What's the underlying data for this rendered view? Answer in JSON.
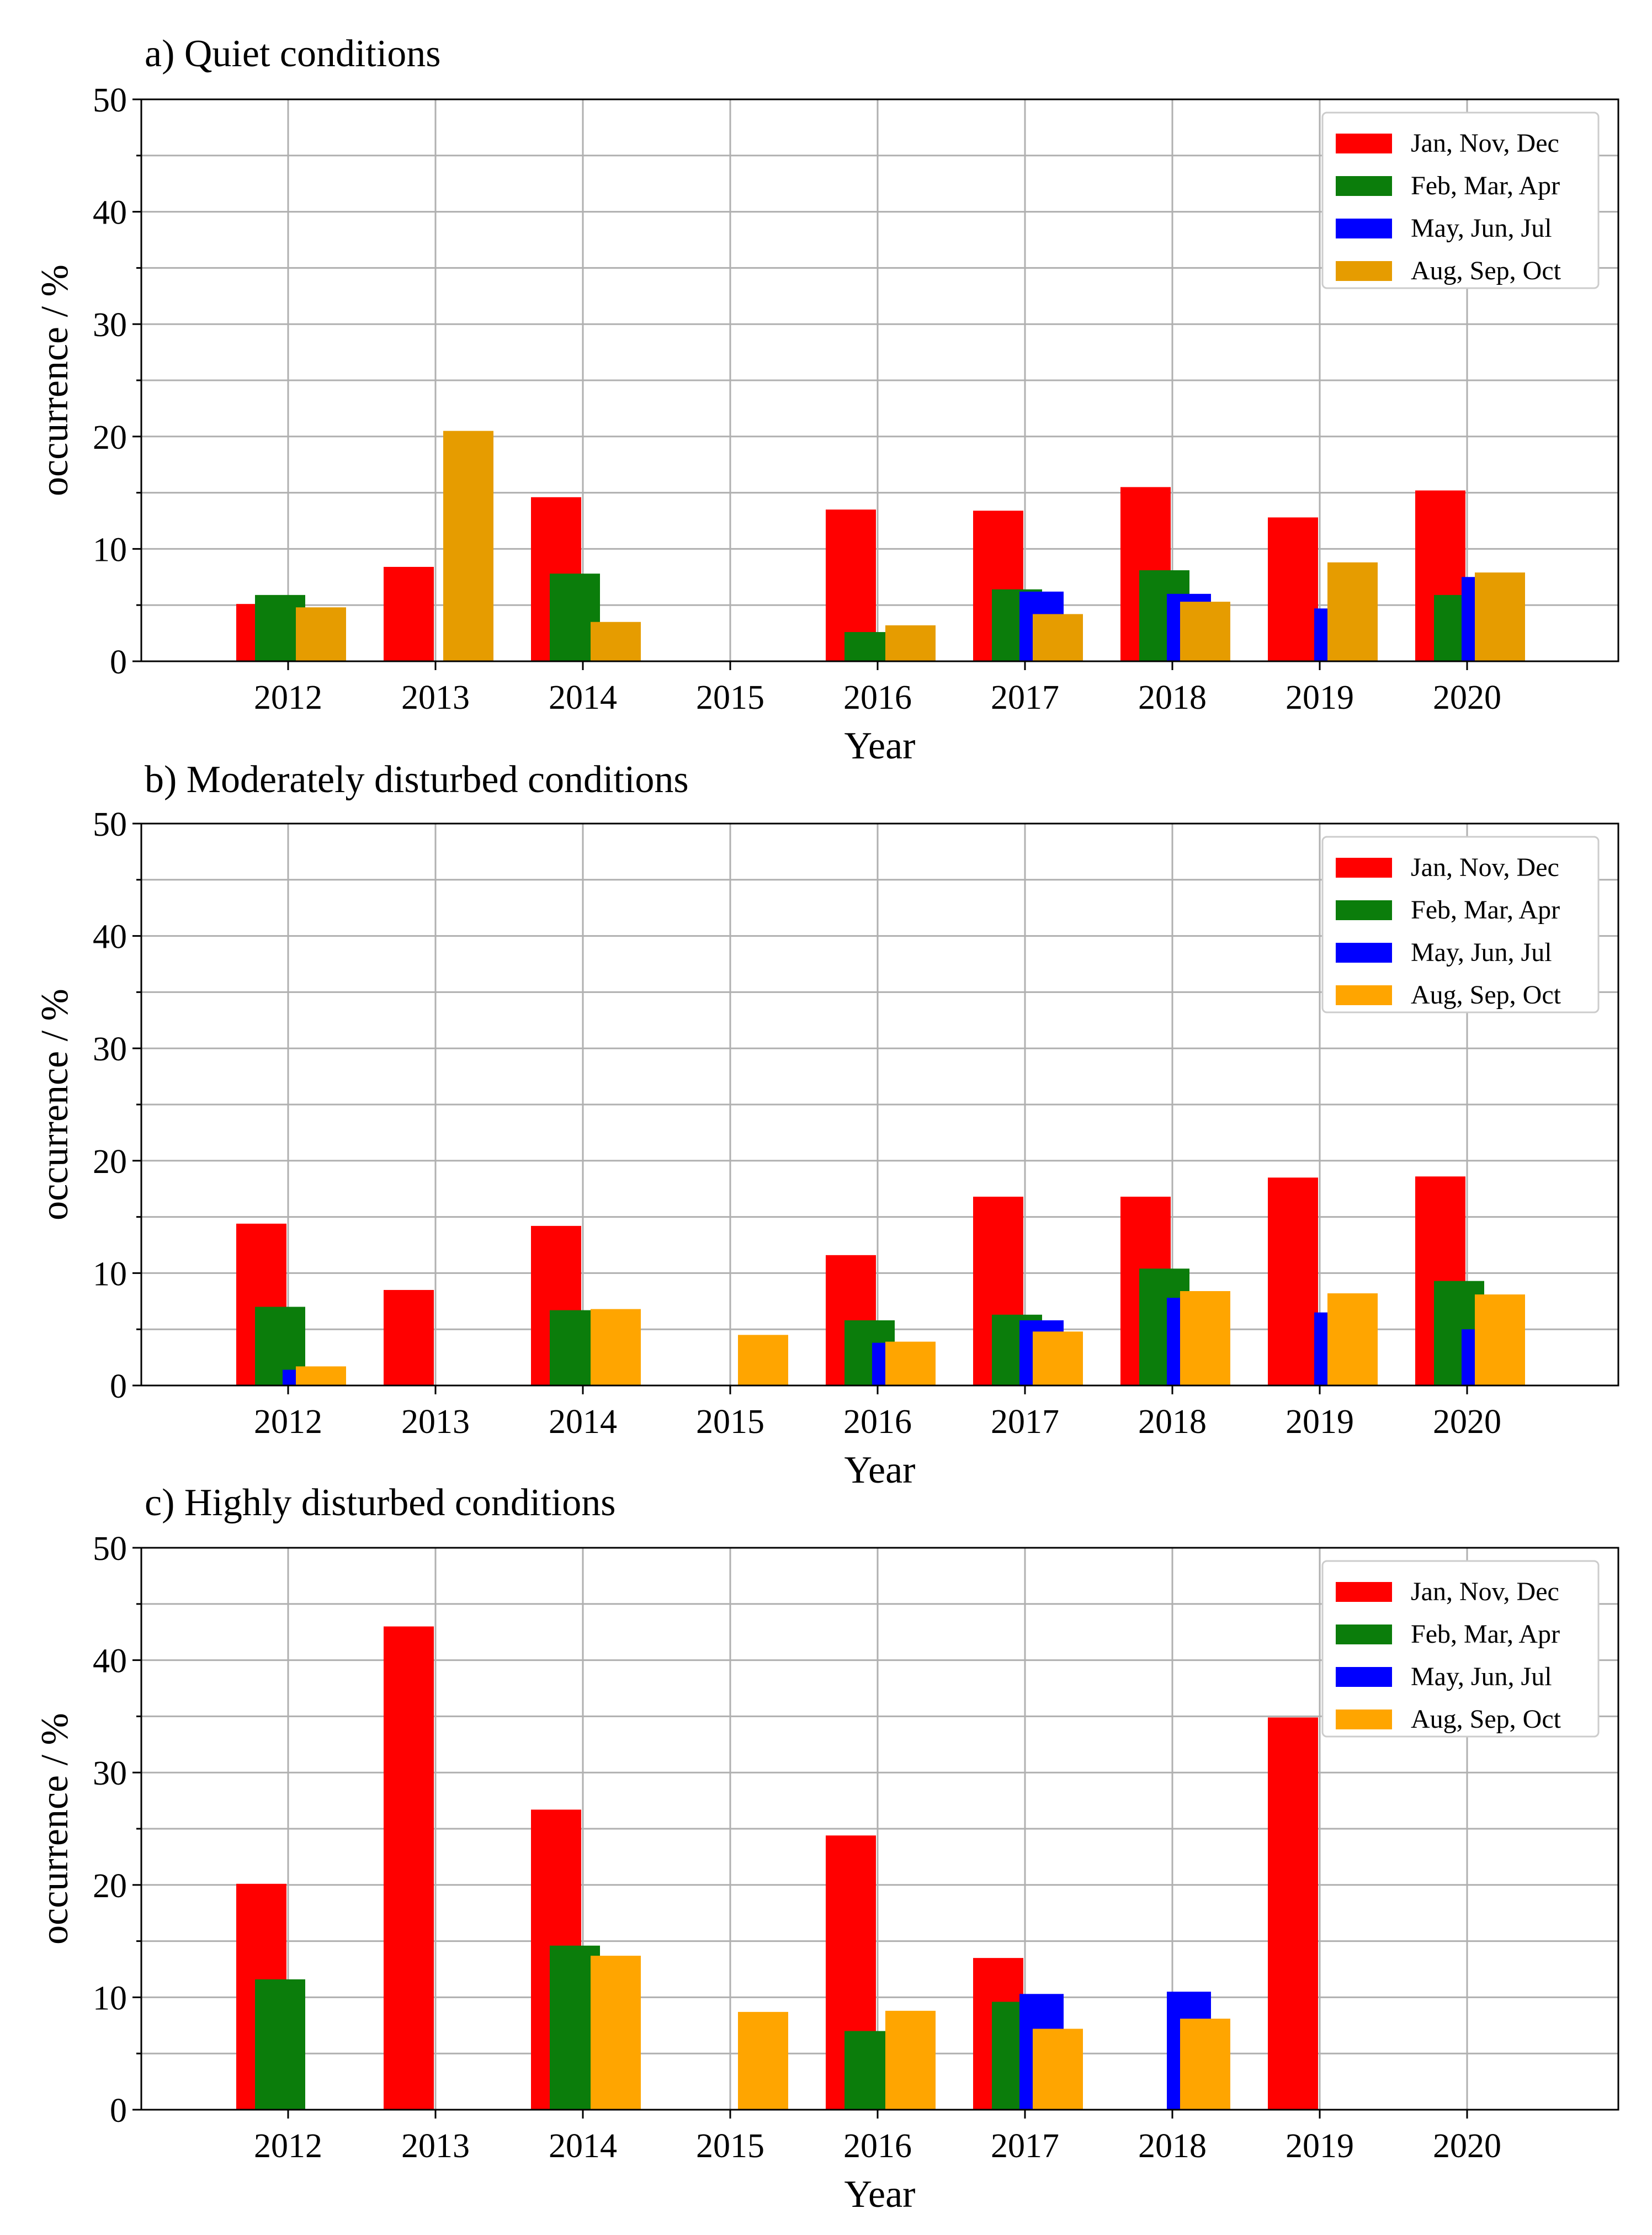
{
  "colors": {
    "Jan, Nov, Dec": "#ff0000",
    "Feb, Mar, Apr": "#0b7d0b",
    "May, Jun, Jul": "#0000ff",
    "Aug, Sep, Oct": "#ffa500",
    "Aug, Sep, Oct (panel a)": "#e69c00"
  },
  "chart_data": [
    {
      "type": "bar",
      "title": "a) Quiet conditions",
      "xlabel": "Year",
      "ylabel": "occurrence / %",
      "ylim": [
        0,
        50
      ],
      "yticks": [
        "0",
        "10",
        "20",
        "30",
        "40",
        "50"
      ],
      "grid": true,
      "legend": "top-right",
      "categories": [
        "2012",
        "2013",
        "2014",
        "2015",
        "2016",
        "2017",
        "2018",
        "2019",
        "2020"
      ],
      "series": [
        {
          "name": "Jan, Nov, Dec",
          "values": [
            5.1,
            8.4,
            14.6,
            0,
            13.5,
            13.4,
            15.5,
            12.8,
            15.2
          ]
        },
        {
          "name": "Feb, Mar, Apr",
          "values": [
            5.9,
            0,
            7.8,
            0,
            2.6,
            6.4,
            8.1,
            0,
            5.9
          ]
        },
        {
          "name": "May, Jun, Jul",
          "values": [
            0,
            0,
            0,
            0,
            0,
            6.2,
            6.0,
            4.7,
            7.5
          ]
        },
        {
          "name": "Aug, Sep, Oct",
          "values": [
            4.8,
            20.5,
            3.5,
            0,
            3.2,
            4.2,
            5.3,
            8.8,
            7.9
          ]
        }
      ]
    },
    {
      "type": "bar",
      "title": "b) Moderately disturbed conditions",
      "xlabel": "Year",
      "ylabel": "occurrence / %",
      "ylim": [
        0,
        50
      ],
      "yticks": [
        "0",
        "10",
        "20",
        "30",
        "40",
        "50"
      ],
      "grid": true,
      "legend": "top-right",
      "categories": [
        "2012",
        "2013",
        "2014",
        "2015",
        "2016",
        "2017",
        "2018",
        "2019",
        "2020"
      ],
      "series": [
        {
          "name": "Jan, Nov, Dec",
          "values": [
            14.4,
            8.5,
            14.2,
            0,
            11.6,
            16.8,
            16.8,
            18.5,
            18.6
          ]
        },
        {
          "name": "Feb, Mar, Apr",
          "values": [
            7.0,
            0,
            6.7,
            0,
            5.8,
            6.3,
            10.4,
            0,
            9.3
          ]
        },
        {
          "name": "May, Jun, Jul",
          "values": [
            1.4,
            0,
            0,
            0,
            3.8,
            5.8,
            7.8,
            6.5,
            5.0
          ]
        },
        {
          "name": "Aug, Sep, Oct",
          "values": [
            1.7,
            0,
            6.8,
            4.5,
            3.9,
            4.8,
            8.4,
            8.2,
            8.1
          ]
        }
      ]
    },
    {
      "type": "bar",
      "title": "c) Highly disturbed conditions",
      "xlabel": "Year",
      "ylabel": "occurrence / %",
      "ylim": [
        0,
        50
      ],
      "yticks": [
        "0",
        "10",
        "20",
        "30",
        "40",
        "50"
      ],
      "grid": true,
      "legend": "top-right",
      "categories": [
        "2012",
        "2013",
        "2014",
        "2015",
        "2016",
        "2017",
        "2018",
        "2019",
        "2020"
      ],
      "series": [
        {
          "name": "Jan, Nov, Dec",
          "values": [
            20.1,
            43.0,
            26.7,
            0,
            24.4,
            13.5,
            0,
            34.9,
            0
          ]
        },
        {
          "name": "Feb, Mar, Apr",
          "values": [
            11.6,
            0,
            14.6,
            0,
            7.0,
            9.6,
            0,
            0,
            0
          ]
        },
        {
          "name": "May, Jun, Jul",
          "values": [
            0,
            0,
            0,
            0,
            0,
            10.3,
            10.5,
            0,
            0
          ]
        },
        {
          "name": "Aug, Sep, Oct",
          "values": [
            0,
            0,
            13.7,
            8.7,
            8.8,
            7.2,
            8.1,
            0,
            0
          ]
        }
      ]
    }
  ]
}
